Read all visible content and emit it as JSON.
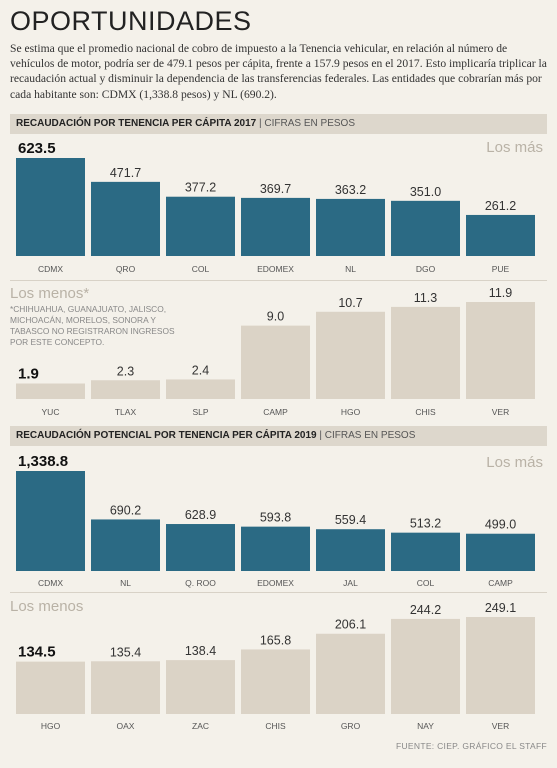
{
  "title": "OPORTUNIDADES",
  "intro": "Se estima que el promedio nacional de cobro de impuesto a la Tenencia vehicular, en relación al número de vehículos de motor, podría ser de 479.1 pesos per cápita, frente a 157.9 pesos en el 2017. Esto implicaría triplicar la recaudación actual y disminuir la dependencia de las transferencias federales. Las entidades que cobrarían más por cada habitante son: CDMX (1,338.8 pesos) y NL (690.2).",
  "colors": {
    "high": "#2b6a84",
    "low": "#dbd3c6",
    "background": "#f4f1ea",
    "header": "#ddd7cc"
  },
  "sections": [
    {
      "title_bold": "RECAUDACIÓN POR TENENCIA PER CÁPITA 2017",
      "title_separator": "|",
      "title_sub": "CIFRAS EN PESOS"
    },
    {
      "title_bold": "RECAUDACIÓN POTENCIAL POR TENENCIA PER CÁPITA 2019",
      "title_separator": "|",
      "title_sub": "CIFRAS EN PESOS"
    }
  ],
  "footnote": "*CHIHUAHUA, GUANAJUATO, JALISCO, MICHOACÁN, MORELOS, SONORA Y TABASCO NO REGISTRARON INGRESOS POR ESTE CONCEPTO.",
  "footer": "FUENTE: CIEP. GRÁFICO EL STAFF",
  "chart_data": [
    {
      "type": "bar",
      "panel_label": "Los más",
      "color": "#2b6a84",
      "categories": [
        "CDMX",
        "QRO",
        "COL",
        "EDOMEX",
        "NL",
        "DGO",
        "PUE"
      ],
      "values": [
        623.5,
        471.7,
        377.2,
        369.7,
        363.2,
        351.0,
        261.2
      ],
      "labels": [
        "623.5",
        "471.7",
        "377.2",
        "369.7",
        "363.2",
        "351.0",
        "261.2"
      ],
      "ylim": [
        0,
        623.5
      ]
    },
    {
      "type": "bar",
      "panel_label": "Los menos*",
      "color": "#dbd3c6",
      "categories": [
        "YUC",
        "TLAX",
        "SLP",
        "CAMP",
        "HGO",
        "CHIS",
        "VER"
      ],
      "values": [
        1.9,
        2.3,
        2.4,
        9.0,
        10.7,
        11.3,
        11.9
      ],
      "labels": [
        "1.9",
        "2.3",
        "2.4",
        "9.0",
        "10.7",
        "11.3",
        "11.9"
      ],
      "ylim": [
        0,
        11.9
      ]
    },
    {
      "type": "bar",
      "panel_label": "Los más",
      "color": "#2b6a84",
      "categories": [
        "CDMX",
        "NL",
        "Q. ROO",
        "EDOMEX",
        "JAL",
        "COL",
        "CAMP"
      ],
      "values": [
        1338.8,
        690.2,
        628.9,
        593.8,
        559.4,
        513.2,
        499.0
      ],
      "labels": [
        "1,338.8",
        "690.2",
        "628.9",
        "593.8",
        "559.4",
        "513.2",
        "499.0"
      ],
      "ylim": [
        0,
        1338.8
      ]
    },
    {
      "type": "bar",
      "panel_label": "Los menos",
      "color": "#dbd3c6",
      "categories": [
        "HGO",
        "OAX",
        "ZAC",
        "CHIS",
        "GRO",
        "NAY",
        "VER"
      ],
      "values": [
        134.5,
        135.4,
        138.4,
        165.8,
        206.1,
        244.2,
        249.1
      ],
      "labels": [
        "134.5",
        "135.4",
        "138.4",
        "165.8",
        "206.1",
        "244.2",
        "249.1"
      ],
      "ylim": [
        0,
        249.1
      ]
    }
  ]
}
